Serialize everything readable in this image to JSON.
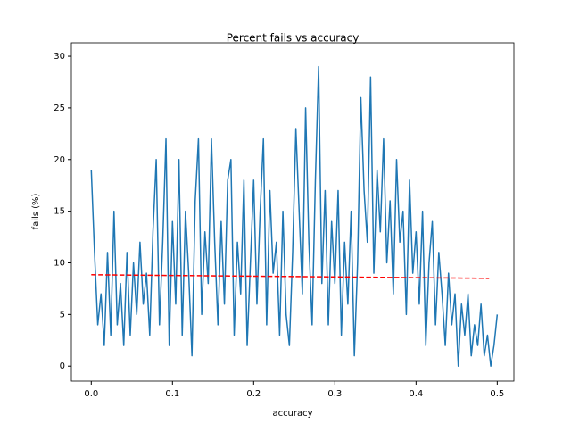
{
  "chart_data": {
    "type": "line",
    "title": "Percent fails vs accuracy",
    "xlabel": "accuracy",
    "ylabel": "fails (%)",
    "xlim": [
      -0.0245,
      0.5205
    ],
    "ylim": [
      -1.45,
      31.3
    ],
    "xticks": [
      {
        "value": 0,
        "label": "0.0"
      },
      0.1,
      0.2,
      0.3,
      0.4,
      0.5
    ],
    "yticks": [
      0,
      5,
      10,
      15,
      20,
      25,
      30
    ],
    "series": [
      {
        "color": "#1f77b4",
        "dash": false,
        "x": [
          0,
          0.004,
          0.008,
          0.012,
          0.016,
          0.02,
          0.024,
          0.028,
          0.032,
          0.036,
          0.04,
          0.044,
          0.048,
          0.052,
          0.056,
          0.06,
          0.064,
          0.068,
          0.072,
          0.076,
          0.08,
          0.084,
          0.088,
          0.092,
          0.096,
          0.1,
          0.104,
          0.108,
          0.112,
          0.116,
          0.12,
          0.124,
          0.128,
          0.132,
          0.136,
          0.14,
          0.144,
          0.148,
          0.152,
          0.156,
          0.16,
          0.164,
          0.168,
          0.172,
          0.176,
          0.18,
          0.184,
          0.188,
          0.192,
          0.196,
          0.2,
          0.204,
          0.208,
          0.212,
          0.216,
          0.22,
          0.224,
          0.228,
          0.232,
          0.236,
          0.24,
          0.244,
          0.248,
          0.252,
          0.256,
          0.26,
          0.264,
          0.268,
          0.272,
          0.276,
          0.28,
          0.284,
          0.288,
          0.292,
          0.296,
          0.3,
          0.304,
          0.308,
          0.312,
          0.316,
          0.32,
          0.324,
          0.328,
          0.332,
          0.336,
          0.34,
          0.344,
          0.348,
          0.352,
          0.356,
          0.36,
          0.364,
          0.368,
          0.372,
          0.376,
          0.38,
          0.384,
          0.388,
          0.392,
          0.396,
          0.4,
          0.404,
          0.408,
          0.412,
          0.416,
          0.42,
          0.424,
          0.428,
          0.432,
          0.436,
          0.44,
          0.444,
          0.448,
          0.452,
          0.456,
          0.46,
          0.464,
          0.468,
          0.472,
          0.476,
          0.48,
          0.484,
          0.488,
          0.492,
          0.496,
          0.5
        ],
        "values": [
          19,
          11,
          4,
          7,
          2,
          11,
          3,
          15,
          4,
          8,
          2,
          11,
          3,
          10,
          5,
          12,
          6,
          9,
          3,
          13,
          20,
          4,
          12,
          22,
          2,
          14,
          6,
          20,
          3,
          15,
          9,
          1,
          16,
          22,
          5,
          13,
          8,
          22,
          12,
          4,
          14,
          6,
          18,
          20,
          3,
          12,
          7,
          18,
          2,
          10,
          18,
          6,
          15,
          22,
          4,
          17,
          9,
          12,
          3,
          15,
          5,
          2,
          11,
          23,
          15,
          7,
          25,
          12,
          4,
          18,
          29,
          8,
          17,
          4,
          14,
          8,
          17,
          3,
          12,
          6,
          15,
          1,
          10,
          26,
          17,
          12,
          28,
          9,
          19,
          13,
          22,
          10,
          16,
          7,
          20,
          12,
          15,
          5,
          18,
          9,
          13,
          6,
          15,
          2,
          10,
          14,
          4,
          11,
          7,
          2,
          9,
          4,
          7,
          0,
          6,
          3,
          7,
          1,
          4,
          2,
          6,
          1,
          3,
          0,
          2,
          5
        ]
      },
      {
        "color": "#ff0000",
        "dash": true,
        "x": [
          0,
          0.49
        ],
        "values": [
          8.85,
          8.5
        ]
      }
    ]
  }
}
